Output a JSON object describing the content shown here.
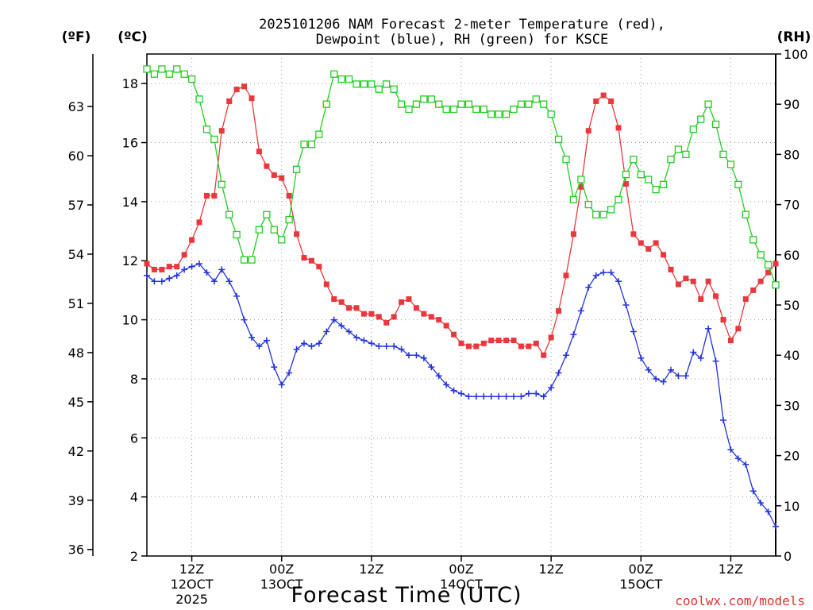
{
  "chart_data": {
    "type": "line",
    "title_line1": "2025101206 NAM Forecast 2-meter Temperature (red),",
    "title_line2": "Dewpoint (blue), RH (green) for KSCE",
    "units": {
      "fahrenheit": "(ºF)",
      "celsius": "(ºC)",
      "rh": "(RH)"
    },
    "xlabel": "Forecast Time (UTC)",
    "credit": "coolwx.com/models",
    "x_hours_range": [
      0,
      84
    ],
    "x_ticks": [
      {
        "hour": 6,
        "label": "12Z",
        "sub": "12OCT",
        "sub2": "2025"
      },
      {
        "hour": 18,
        "label": "00Z",
        "sub": "13OCT",
        "sub2": ""
      },
      {
        "hour": 30,
        "label": "12Z",
        "sub": "",
        "sub2": ""
      },
      {
        "hour": 42,
        "label": "00Z",
        "sub": "14OCT",
        "sub2": ""
      },
      {
        "hour": 54,
        "label": "12Z",
        "sub": "",
        "sub2": ""
      },
      {
        "hour": 66,
        "label": "00Z",
        "sub": "15OCT",
        "sub2": ""
      },
      {
        "hour": 78,
        "label": "12Z",
        "sub": "",
        "sub2": ""
      }
    ],
    "celsius_axis": {
      "range": [
        2,
        19
      ],
      "ticks": [
        2,
        4,
        6,
        8,
        10,
        12,
        14,
        16,
        18
      ]
    },
    "fahrenheit_axis": {
      "ticks": [
        36,
        39,
        42,
        45,
        48,
        51,
        54,
        57,
        60,
        63
      ]
    },
    "rh_axis": {
      "range": [
        0,
        100
      ],
      "ticks": [
        0,
        10,
        20,
        30,
        40,
        50,
        60,
        70,
        80,
        90,
        100
      ]
    },
    "grid": true,
    "series": [
      {
        "name": "Temperature",
        "axis": "celsius",
        "color": "#e8383d",
        "marker": "filled-square",
        "values": [
          11.9,
          11.7,
          11.7,
          11.8,
          11.8,
          12.2,
          12.7,
          13.3,
          14.2,
          14.2,
          16.4,
          17.4,
          17.8,
          17.9,
          17.5,
          15.7,
          15.2,
          14.9,
          14.8,
          14.2,
          12.9,
          12.1,
          12.0,
          11.8,
          11.2,
          10.7,
          10.6,
          10.4,
          10.4,
          10.2,
          10.2,
          10.1,
          9.9,
          10.1,
          10.6,
          10.7,
          10.4,
          10.2,
          10.1,
          10.0,
          9.8,
          9.5,
          9.2,
          9.1,
          9.1,
          9.2,
          9.3,
          9.3,
          9.3,
          9.3,
          9.1,
          9.1,
          9.2,
          8.8,
          9.4,
          10.3,
          11.5,
          12.9,
          14.5,
          16.4,
          17.4,
          17.6,
          17.4,
          16.5,
          14.6,
          12.9,
          12.6,
          12.4,
          12.6,
          12.2,
          11.7,
          11.2,
          11.4,
          11.3,
          10.7,
          11.3,
          10.8,
          10.0,
          9.3,
          9.7,
          10.7,
          11.0,
          11.3,
          11.6,
          11.9
        ]
      },
      {
        "name": "Dewpoint",
        "axis": "celsius",
        "color": "#2233dd",
        "marker": "plus",
        "values": [
          11.5,
          11.3,
          11.3,
          11.4,
          11.5,
          11.7,
          11.8,
          11.9,
          11.6,
          11.3,
          11.7,
          11.3,
          10.8,
          10.0,
          9.4,
          9.1,
          9.3,
          8.4,
          7.8,
          8.2,
          9.0,
          9.2,
          9.1,
          9.2,
          9.6,
          10.0,
          9.8,
          9.6,
          9.4,
          9.3,
          9.2,
          9.1,
          9.1,
          9.1,
          9.0,
          8.8,
          8.8,
          8.7,
          8.4,
          8.1,
          7.8,
          7.6,
          7.5,
          7.4,
          7.4,
          7.4,
          7.4,
          7.4,
          7.4,
          7.4,
          7.4,
          7.5,
          7.5,
          7.4,
          7.7,
          8.2,
          8.8,
          9.5,
          10.3,
          11.1,
          11.5,
          11.6,
          11.6,
          11.3,
          10.5,
          9.6,
          8.7,
          8.3,
          8.0,
          7.9,
          8.3,
          8.1,
          8.1,
          8.9,
          8.7,
          9.7,
          8.6,
          6.6,
          5.6,
          5.3,
          5.1,
          4.2,
          3.8,
          3.5,
          3.0
        ]
      },
      {
        "name": "RH",
        "axis": "rh",
        "color": "#22cc22",
        "marker": "open-square",
        "values": [
          97,
          96,
          97,
          96,
          97,
          96,
          95,
          91,
          85,
          83,
          74,
          68,
          64,
          59,
          59,
          65,
          68,
          65,
          63,
          67,
          77,
          82,
          82,
          84,
          90,
          96,
          95,
          95,
          94,
          94,
          94,
          93,
          94,
          93,
          90,
          89,
          90,
          91,
          91,
          90,
          89,
          89,
          90,
          90,
          89,
          89,
          88,
          88,
          88,
          89,
          90,
          90,
          91,
          90,
          88,
          83,
          79,
          71,
          75,
          70,
          68,
          68,
          69,
          71,
          76,
          79,
          76,
          75,
          73,
          74,
          79,
          81,
          80,
          85,
          87,
          90,
          86,
          80,
          78,
          74,
          68,
          63,
          60,
          58,
          54
        ]
      }
    ]
  }
}
